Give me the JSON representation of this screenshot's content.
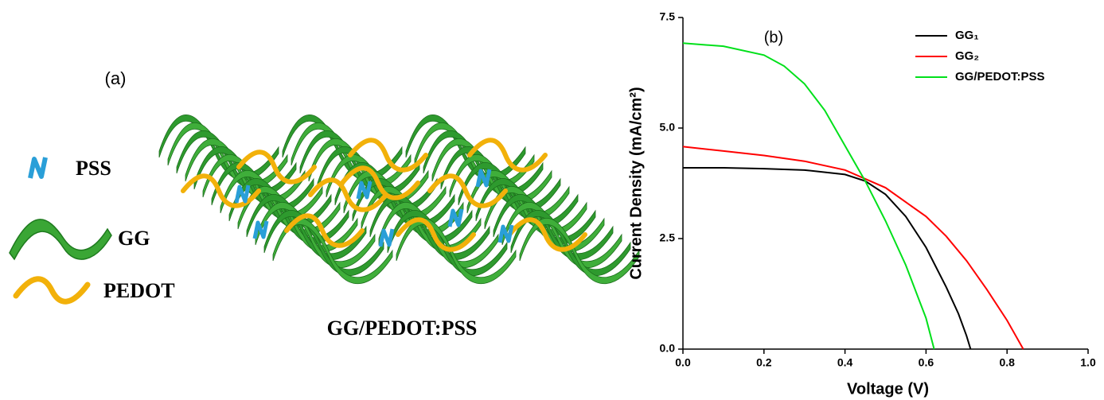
{
  "panel_a": {
    "label": "(a)",
    "legend": [
      {
        "label": "PSS"
      },
      {
        "label": "GG"
      },
      {
        "label": "PEDOT"
      }
    ],
    "caption": "GG/PEDOT:PSS"
  },
  "chart_data": {
    "type": "line",
    "annotation": "(b)",
    "xlabel": "Voltage (V)",
    "ylabel": "Current Density (mA/cm²)",
    "xlim": [
      0,
      1
    ],
    "ylim": [
      0,
      7.5
    ],
    "xticks": [
      {
        "value": 0,
        "label": "0.0"
      },
      0.2,
      0.4,
      0.6,
      0.8,
      {
        "value": 1,
        "label": "1.0"
      }
    ],
    "yticks": [
      {
        "value": 0,
        "label": "0.0"
      },
      2.5,
      {
        "value": 5,
        "label": "5.0"
      },
      7.5
    ],
    "legend_loc": "upper right",
    "series": [
      {
        "name": "GG₁",
        "color": "#000000",
        "x": [
          0,
          0.1,
          0.2,
          0.3,
          0.4,
          0.45,
          0.5,
          0.55,
          0.6,
          0.65,
          0.68,
          0.7,
          0.71
        ],
        "values": [
          4.1,
          4.1,
          4.08,
          4.05,
          3.95,
          3.8,
          3.5,
          3.0,
          2.3,
          1.4,
          0.8,
          0.3,
          0
        ]
      },
      {
        "name": "GG₂",
        "color": "#ff0000",
        "x": [
          0,
          0.1,
          0.2,
          0.3,
          0.4,
          0.5,
          0.6,
          0.65,
          0.7,
          0.75,
          0.8,
          0.84
        ],
        "values": [
          4.58,
          4.48,
          4.38,
          4.25,
          4.05,
          3.65,
          3.0,
          2.55,
          2.0,
          1.35,
          0.65,
          0
        ]
      },
      {
        "name": "GG/PEDOT:PSS",
        "color": "#00e01a",
        "x": [
          0,
          0.1,
          0.2,
          0.25,
          0.3,
          0.35,
          0.4,
          0.45,
          0.5,
          0.55,
          0.6,
          0.62
        ],
        "values": [
          6.92,
          6.85,
          6.65,
          6.4,
          6.0,
          5.4,
          4.6,
          3.8,
          2.9,
          1.9,
          0.7,
          0
        ]
      }
    ]
  }
}
